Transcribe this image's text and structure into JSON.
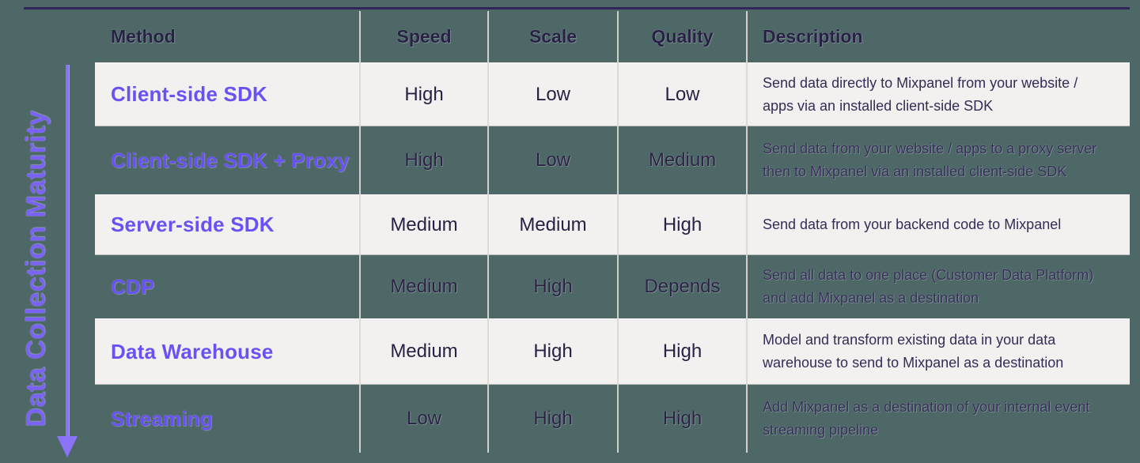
{
  "axis": {
    "label": "Data Collection Maturity",
    "arrow_icon": "down-arrow",
    "color": "#7b62f6"
  },
  "colors": {
    "background_teal": "#4e6868",
    "light_row": "#f2f1ef",
    "accent_purple": "#6952f3",
    "dark_text": "#2a2145",
    "top_rule": "#31265a",
    "separator": "#dbd8d4"
  },
  "table": {
    "columns": [
      "Method",
      "Speed",
      "Scale",
      "Quality",
      "Description"
    ],
    "rows": [
      {
        "method": "Client-side SDK",
        "speed": "High",
        "scale": "Low",
        "quality": "Low",
        "description": "Send data directly to Mixpanel from your website / apps via an installed client-side SDK",
        "variant": "light"
      },
      {
        "method": "Client-side SDK + Proxy",
        "speed": "High",
        "scale": "Low",
        "quality": "Medium",
        "description": "Send data from your website / apps to a proxy server then to Mixpanel via an installed client-side SDK",
        "variant": "teal"
      },
      {
        "method": "Server-side SDK",
        "speed": "Medium",
        "scale": "Medium",
        "quality": "High",
        "description": "Send data from your backend code to Mixpanel",
        "variant": "light"
      },
      {
        "method": "CDP",
        "speed": "Medium",
        "scale": "High",
        "quality": "Depends",
        "description": "Send all data to one place (Customer Data Platform) and add Mixpanel as a destination",
        "variant": "teal"
      },
      {
        "method": "Data Warehouse",
        "speed": "Medium",
        "scale": "High",
        "quality": "High",
        "description": "Model and transform existing data in your data warehouse to send to Mixpanel as a destination",
        "variant": "light"
      },
      {
        "method": "Streaming",
        "speed": "Low",
        "scale": "High",
        "quality": "High",
        "description": "Add Mixpanel as a destination of your internal event streaming pipeline",
        "variant": "teal"
      }
    ]
  }
}
